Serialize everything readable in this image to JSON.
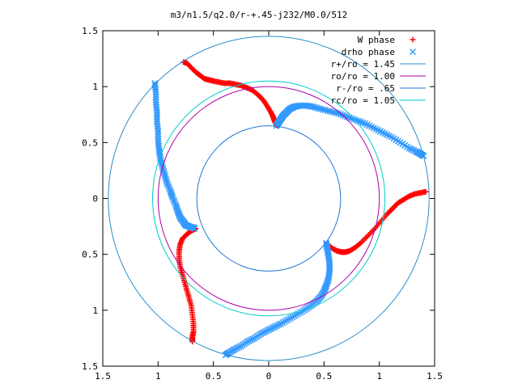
{
  "chart_data": {
    "type": "scatter",
    "title": "m3/n1.5/q2.0/r-+.45-j232/M0.0/512",
    "xlabel": "",
    "ylabel": "",
    "xlim": [
      -1.5,
      1.5
    ],
    "ylim": [
      -1.5,
      1.5
    ],
    "x_ticks": [
      -1.5,
      -1,
      -0.5,
      0,
      0.5,
      1,
      1.5
    ],
    "x_tick_labels": [
      "1.5",
      "1",
      "0.5",
      "0",
      "0.5",
      "1",
      "1.5"
    ],
    "y_ticks": [
      1.5,
      1,
      0.5,
      0,
      -0.5,
      -1,
      -1.5
    ],
    "y_tick_labels": [
      "1.5",
      "1",
      "0.5",
      "0",
      "0.5",
      "1",
      "1.5"
    ],
    "grid": false,
    "legend_position": "top-right",
    "series": [
      {
        "name": "W phase",
        "kind": "points",
        "marker": "plus",
        "color": "#ff0000",
        "x": [
          -0.77,
          -0.74,
          -0.7,
          -0.66,
          -0.62,
          -0.58,
          -0.54,
          -0.5,
          -0.45,
          -0.4,
          -0.35,
          -0.3,
          -0.25,
          -0.2,
          -0.15,
          -0.1,
          -0.05,
          -0.01,
          0.02,
          0.04,
          0.05,
          0.06,
          0.07,
          0.08,
          0.53,
          0.58,
          0.62,
          0.66,
          0.69,
          0.73,
          0.78,
          0.83,
          0.89,
          0.95,
          1.01,
          1.07,
          1.12,
          1.17,
          1.22,
          1.27,
          1.32,
          1.37,
          1.42,
          -0.66,
          -0.7,
          -0.74,
          -0.78,
          -0.8,
          -0.81,
          -0.81,
          -0.8,
          -0.78,
          -0.76,
          -0.74,
          -0.72,
          -0.7,
          -0.69,
          -0.68,
          -0.68,
          -0.69,
          -0.69
        ],
        "y": [
          1.22,
          1.21,
          1.17,
          1.13,
          1.1,
          1.07,
          1.06,
          1.05,
          1.04,
          1.03,
          1.03,
          1.02,
          1.01,
          0.99,
          0.97,
          0.93,
          0.88,
          0.82,
          0.77,
          0.73,
          0.7,
          0.68,
          0.66,
          0.65,
          -0.41,
          -0.45,
          -0.47,
          -0.48,
          -0.48,
          -0.47,
          -0.44,
          -0.4,
          -0.34,
          -0.28,
          -0.21,
          -0.14,
          -0.09,
          -0.04,
          -0.01,
          0.02,
          0.04,
          0.05,
          0.06,
          -0.27,
          -0.29,
          -0.32,
          -0.36,
          -0.41,
          -0.47,
          -0.54,
          -0.61,
          -0.68,
          -0.75,
          -0.82,
          -0.89,
          -0.96,
          -1.04,
          -1.12,
          -1.19,
          -1.24,
          -1.28
        ]
      },
      {
        "name": "drho phase",
        "kind": "points",
        "marker": "cross",
        "color": "#3399ff",
        "x": [
          -1.03,
          -1.02,
          -1.02,
          -1.01,
          -1.01,
          -1.0,
          -1.0,
          -0.99,
          -0.98,
          -0.96,
          -0.94,
          -0.92,
          -0.89,
          -0.87,
          -0.84,
          -0.82,
          -0.8,
          -0.77,
          -0.75,
          -0.72,
          -0.7,
          -0.68,
          -0.67,
          0.07,
          0.09,
          0.11,
          0.13,
          0.16,
          0.19,
          0.23,
          0.28,
          0.34,
          0.4,
          0.47,
          0.55,
          0.63,
          0.71,
          0.79,
          0.87,
          0.95,
          1.03,
          1.11,
          1.19,
          1.27,
          1.33,
          1.37,
          1.4,
          0.52,
          0.53,
          0.54,
          0.55,
          0.55,
          0.54,
          0.52,
          0.5,
          0.47,
          0.43,
          0.38,
          0.32,
          0.25,
          0.18,
          0.11,
          0.05,
          -0.01,
          -0.07,
          -0.13,
          -0.19,
          -0.25,
          -0.31,
          -0.36,
          -0.39
        ],
        "y": [
          1.03,
          0.95,
          0.86,
          0.77,
          0.69,
          0.6,
          0.51,
          0.43,
          0.36,
          0.28,
          0.21,
          0.14,
          0.07,
          0.01,
          -0.06,
          -0.12,
          -0.17,
          -0.21,
          -0.24,
          -0.25,
          -0.26,
          -0.26,
          -0.27,
          0.65,
          0.68,
          0.71,
          0.74,
          0.77,
          0.8,
          0.82,
          0.83,
          0.83,
          0.82,
          0.8,
          0.78,
          0.76,
          0.73,
          0.7,
          0.67,
          0.63,
          0.59,
          0.55,
          0.5,
          0.45,
          0.42,
          0.4,
          0.38,
          -0.4,
          -0.45,
          -0.51,
          -0.58,
          -0.65,
          -0.72,
          -0.78,
          -0.83,
          -0.88,
          -0.92,
          -0.96,
          -1.0,
          -1.04,
          -1.08,
          -1.12,
          -1.15,
          -1.18,
          -1.21,
          -1.25,
          -1.28,
          -1.32,
          -1.35,
          -1.38,
          -1.4
        ]
      },
      {
        "name": "r+/ro = 1.45",
        "kind": "circle",
        "r": 1.45,
        "color": "#2a8dcc"
      },
      {
        "name": "ro/ro = 1.00",
        "kind": "circle",
        "r": 1.0,
        "color": "#aa00aa"
      },
      {
        "name": "r-/ro = .65",
        "kind": "circle",
        "r": 0.65,
        "color": "#1f77d4"
      },
      {
        "name": "rc/ro = 1.05",
        "kind": "circle",
        "r": 1.05,
        "color": "#00cccc"
      }
    ]
  }
}
